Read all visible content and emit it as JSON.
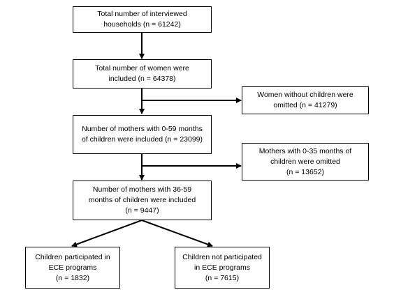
{
  "boxes": {
    "households": [
      "Total number of interviewed",
      "households (n = 61242)"
    ],
    "women": [
      "Total number of women were",
      "included (n = 64378)"
    ],
    "no_children": [
      "Women without children were",
      "omitted (n = 41279)"
    ],
    "mothers_0_59": [
      "Number of mothers with 0-59 months",
      "of children were included (n = 23099)"
    ],
    "mothers_0_35": [
      "Mothers with 0-35 months of",
      "children were omitted",
      "(n = 13652)"
    ],
    "mothers_36_59": [
      "Number of mothers with 36-59",
      "months of children were included",
      "(n = 9447)"
    ],
    "ece_yes": [
      "Children participated in",
      "ECE programs",
      "(n = 1832)"
    ],
    "ece_no": [
      "Children not participated",
      "in ECE programs",
      "(n = 7615)"
    ]
  }
}
